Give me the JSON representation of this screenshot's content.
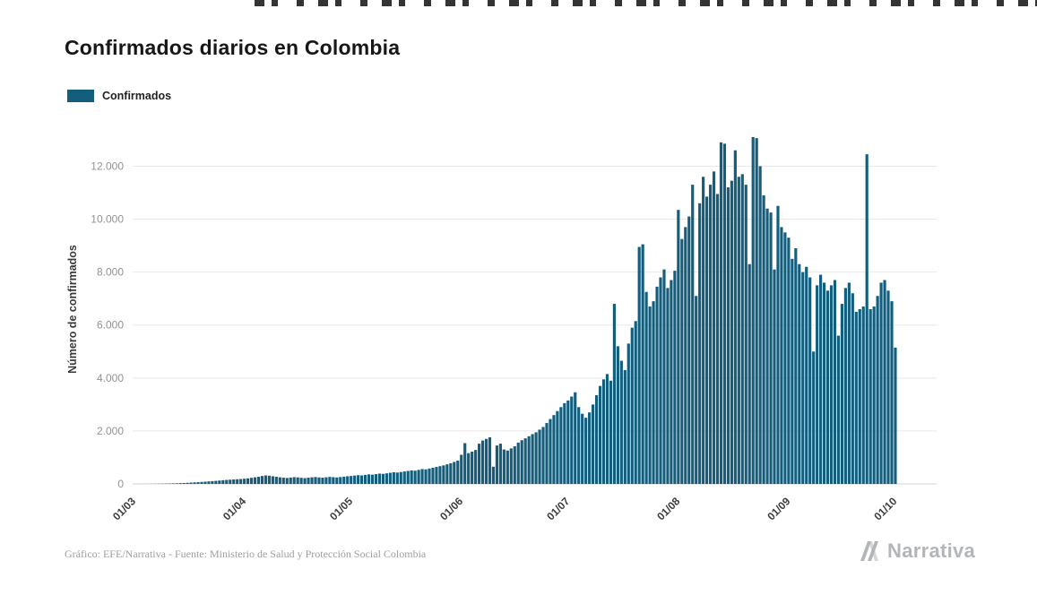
{
  "title": "Confirmados diarios en Colombia",
  "legend": {
    "label": "Confirmados",
    "color": "#135D7D"
  },
  "footer": {
    "credit": "Gráfico: EFE/Narrativa - Fuente: Ministerio de Salud y Protección Social Colombia"
  },
  "brand": {
    "name": "Narrativa"
  },
  "chart_data": {
    "type": "bar",
    "title": "Confirmados diarios en Colombia",
    "xlabel": "",
    "ylabel": "Número de confirmados",
    "legend_position": "top-left",
    "grid": true,
    "ylim": [
      0,
      13200
    ],
    "y_ticks": [
      "0",
      "2.000",
      "4.000",
      "6.000",
      "8.000",
      "10.000",
      "12.000"
    ],
    "y_tick_values": [
      0,
      2000,
      4000,
      6000,
      8000,
      10000,
      12000
    ],
    "x_tick_labels": [
      "01/03",
      "01/04",
      "01/05",
      "01/06",
      "01/07",
      "01/08",
      "01/09",
      "01/10"
    ],
    "x_tick_day_index": [
      0,
      31,
      61,
      92,
      122,
      153,
      184,
      214
    ],
    "x_axis_slots": 226,
    "series": [
      {
        "name": "Confirmados",
        "color": "#135D7D",
        "values": [
          1,
          1,
          2,
          2,
          3,
          4,
          5,
          8,
          10,
          12,
          16,
          20,
          24,
          30,
          35,
          42,
          50,
          57,
          65,
          75,
          85,
          95,
          105,
          115,
          128,
          140,
          150,
          160,
          168,
          176,
          185,
          195,
          210,
          230,
          250,
          270,
          300,
          320,
          310,
          290,
          270,
          250,
          235,
          225,
          240,
          255,
          245,
          230,
          220,
          235,
          250,
          260,
          245,
          235,
          250,
          265,
          255,
          245,
          260,
          275,
          290,
          300,
          315,
          330,
          320,
          340,
          360,
          350,
          370,
          390,
          380,
          400,
          420,
          440,
          430,
          450,
          470,
          490,
          510,
          500,
          530,
          560,
          550,
          580,
          610,
          640,
          670,
          700,
          740,
          780,
          830,
          880,
          1100,
          1540,
          1160,
          1220,
          1280,
          1520,
          1640,
          1700,
          1760,
          650,
          1450,
          1520,
          1300,
          1260,
          1340,
          1420,
          1560,
          1650,
          1720,
          1800,
          1880,
          1950,
          2050,
          2150,
          2300,
          2450,
          2600,
          2750,
          2900,
          3050,
          3150,
          3300,
          3460,
          2900,
          2650,
          2500,
          2700,
          3000,
          3350,
          3700,
          3950,
          4150,
          3900,
          6800,
          5200,
          4650,
          4300,
          5300,
          5900,
          6150,
          8950,
          9050,
          7250,
          6700,
          6900,
          7450,
          7800,
          8100,
          7400,
          7700,
          8050,
          10350,
          9250,
          9700,
          10100,
          11300,
          7100,
          10600,
          11600,
          10850,
          11300,
          11800,
          10950,
          12900,
          12850,
          11200,
          11450,
          12600,
          11600,
          11700,
          11300,
          8300,
          13100,
          13060,
          12000,
          10900,
          10400,
          10250,
          8100,
          10500,
          9700,
          9500,
          9300,
          8500,
          8900,
          8300,
          8000,
          8200,
          7800,
          5000,
          7500,
          7900,
          7600,
          7300,
          7500,
          7700,
          5600,
          6800,
          7400,
          7600,
          7200,
          6500,
          6600,
          6700,
          12450,
          6600,
          6700,
          7100,
          7600,
          7700,
          7300,
          6900,
          5150
        ]
      }
    ]
  }
}
